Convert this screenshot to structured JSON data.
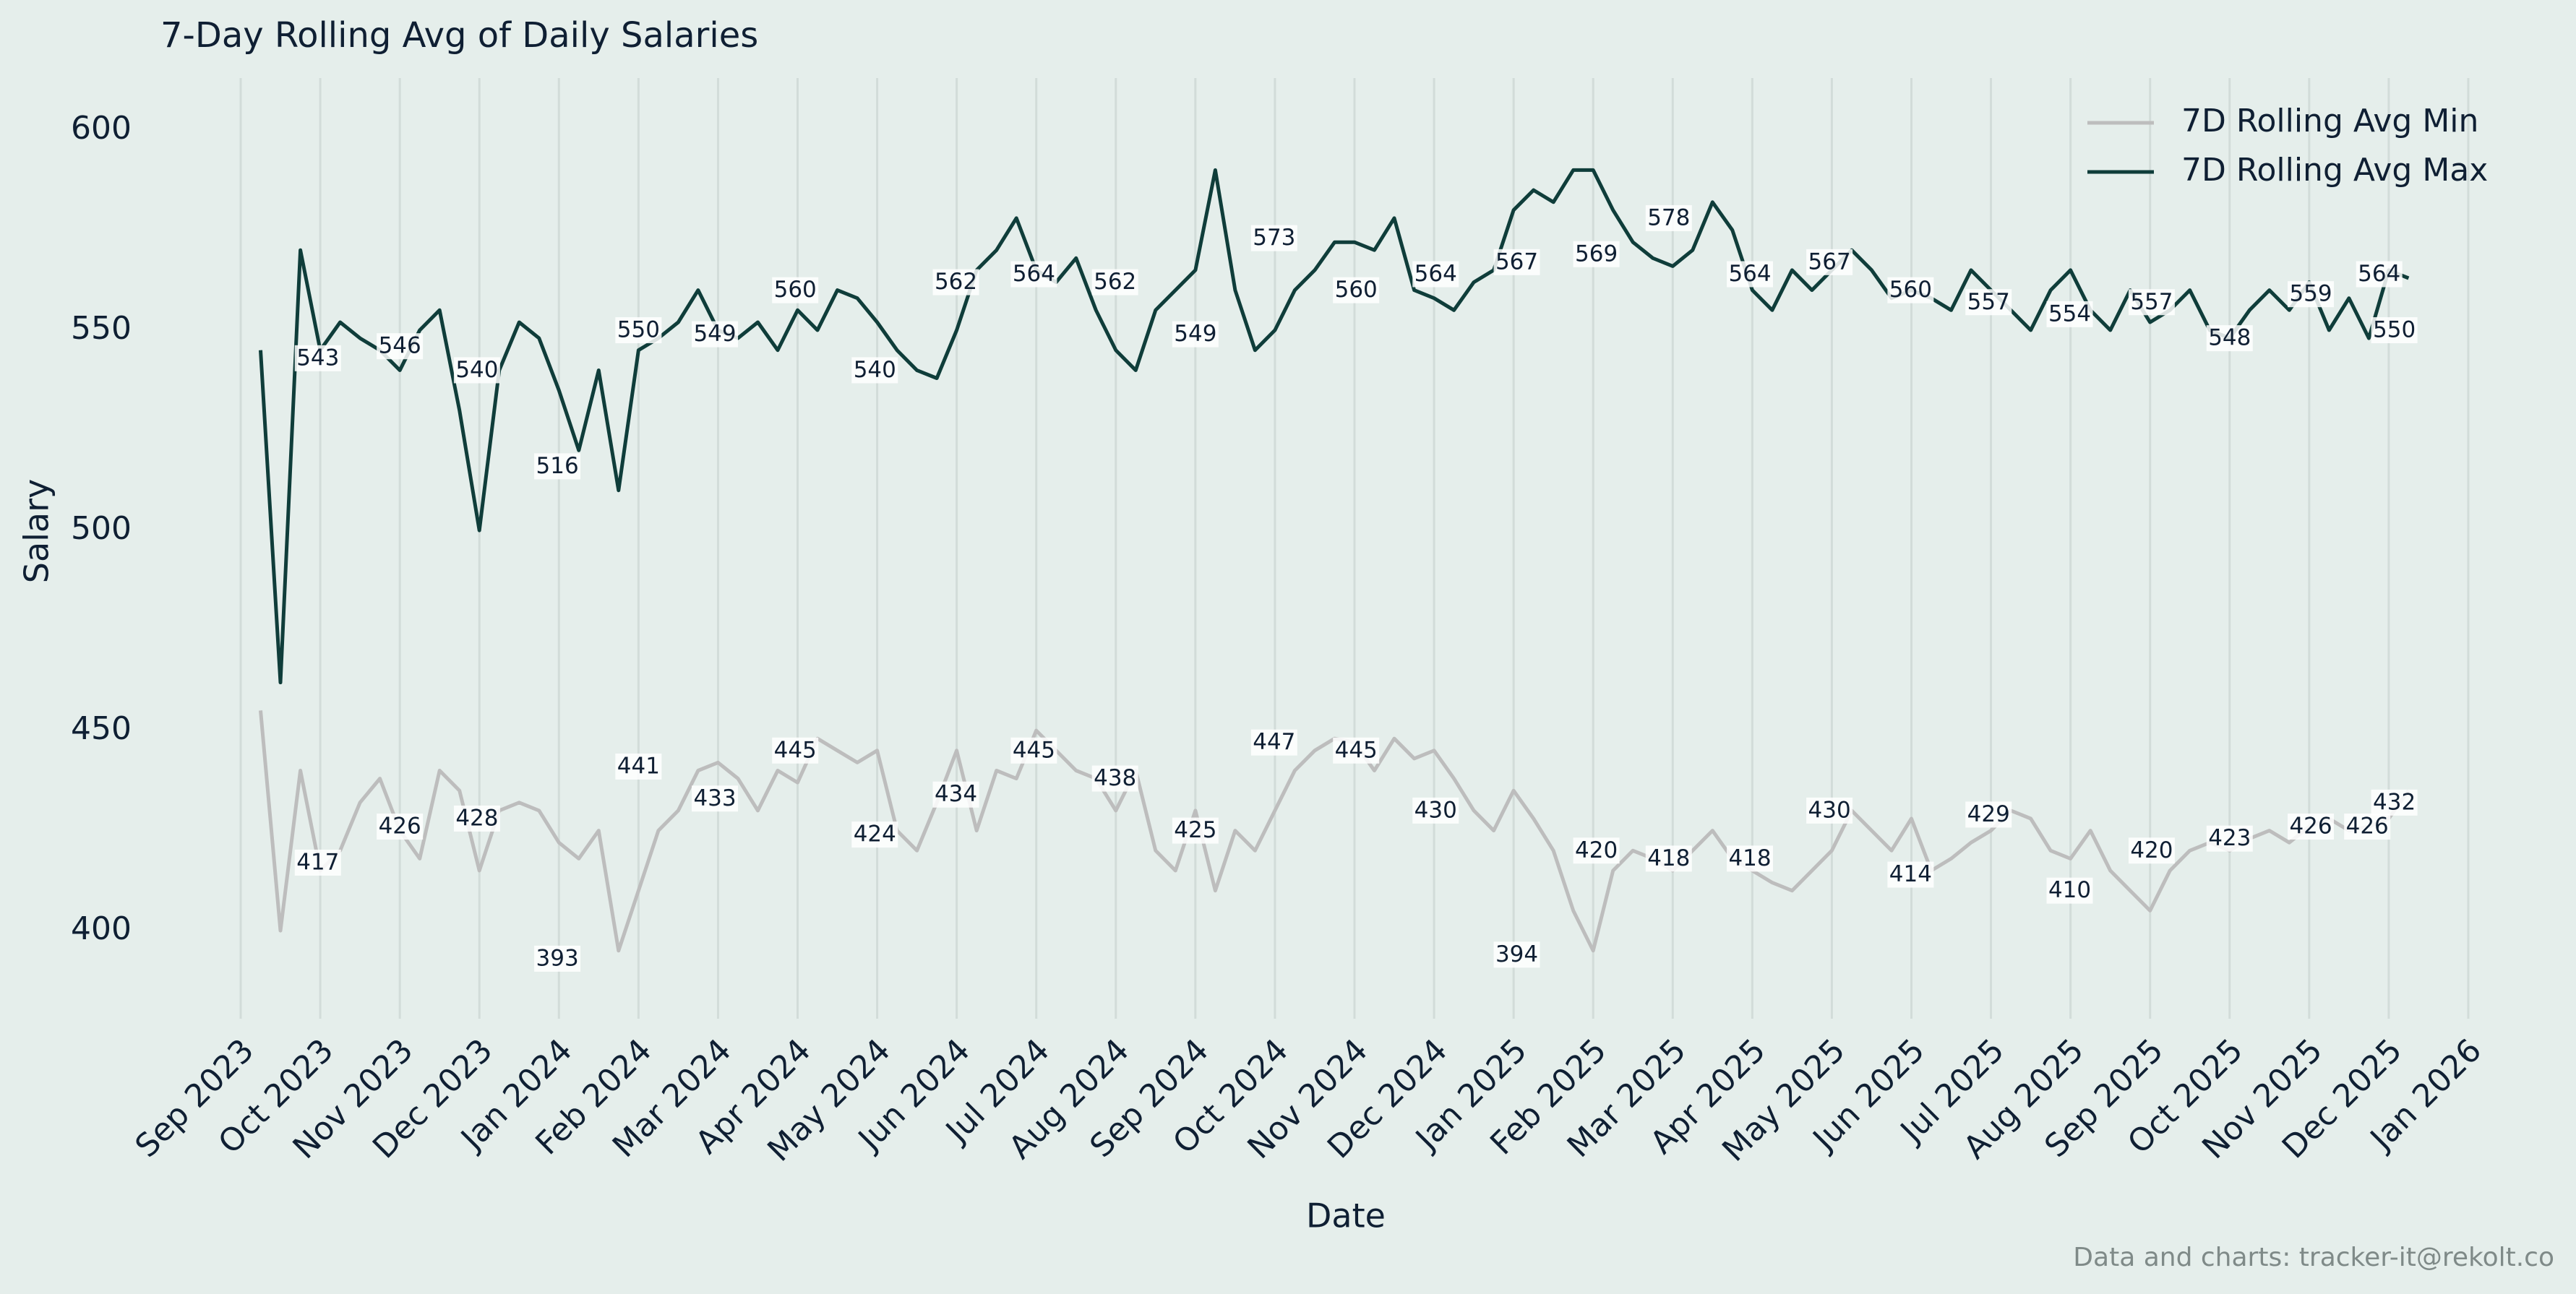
{
  "chart_data": {
    "type": "line",
    "title": "7-Day Rolling Avg of Daily Salaries",
    "xlabel": "Date",
    "ylabel": "Salary",
    "footer": "Data and charts: tracker-it@rekolt.co",
    "legend": "upper right",
    "grid": "x",
    "xlim": [
      -0.2,
      28.2
    ],
    "ylim": [
      378,
      613
    ],
    "xticks": [
      {
        "value": 0,
        "label": "Sep 2023"
      },
      {
        "value": 1,
        "label": "Oct 2023"
      },
      {
        "value": 2,
        "label": "Nov 2023"
      },
      {
        "value": 3,
        "label": "Dec 2023"
      },
      {
        "value": 4,
        "label": "Jan 2024"
      },
      {
        "value": 5,
        "label": "Feb 2024"
      },
      {
        "value": 6,
        "label": "Mar 2024"
      },
      {
        "value": 7,
        "label": "Apr 2024"
      },
      {
        "value": 8,
        "label": "May 2024"
      },
      {
        "value": 9,
        "label": "Jun 2024"
      },
      {
        "value": 10,
        "label": "Jul 2024"
      },
      {
        "value": 11,
        "label": "Aug 2024"
      },
      {
        "value": 12,
        "label": "Sep 2024"
      },
      {
        "value": 13,
        "label": "Oct 2024"
      },
      {
        "value": 14,
        "label": "Nov 2024"
      },
      {
        "value": 15,
        "label": "Dec 2024"
      },
      {
        "value": 16,
        "label": "Jan 2025"
      },
      {
        "value": 17,
        "label": "Feb 2025"
      },
      {
        "value": 18,
        "label": "Mar 2025"
      },
      {
        "value": 19,
        "label": "Apr 2025"
      },
      {
        "value": 20,
        "label": "May 2025"
      },
      {
        "value": 21,
        "label": "Jun 2025"
      },
      {
        "value": 22,
        "label": "Jul 2025"
      },
      {
        "value": 23,
        "label": "Aug 2025"
      },
      {
        "value": 24,
        "label": "Sep 2025"
      },
      {
        "value": 25,
        "label": "Oct 2025"
      },
      {
        "value": 26,
        "label": "Nov 2025"
      },
      {
        "value": 27,
        "label": "Dec 2025"
      },
      {
        "value": 28,
        "label": "Jan 2026"
      }
    ],
    "yticks": [
      400,
      450,
      500,
      550,
      600
    ],
    "x": [
      0.25,
      0.5,
      0.75,
      1,
      1.25,
      1.5,
      1.75,
      2,
      2.25,
      2.5,
      2.75,
      3,
      3.25,
      3.5,
      3.75,
      4,
      4.25,
      4.5,
      4.75,
      5,
      5.25,
      5.5,
      5.75,
      6,
      6.25,
      6.5,
      6.75,
      7,
      7.25,
      7.5,
      7.75,
      8,
      8.25,
      8.5,
      8.75,
      9,
      9.25,
      9.5,
      9.75,
      10,
      10.25,
      10.5,
      10.75,
      11,
      11.25,
      11.5,
      11.75,
      12,
      12.25,
      12.5,
      12.75,
      13,
      13.25,
      13.5,
      13.75,
      14,
      14.25,
      14.5,
      14.75,
      15,
      15.25,
      15.5,
      15.75,
      16,
      16.25,
      16.5,
      16.75,
      17,
      17.25,
      17.5,
      17.75,
      18,
      18.25,
      18.5,
      18.75,
      19,
      19.25,
      19.5,
      19.75,
      20,
      20.25,
      20.5,
      20.75,
      21,
      21.25,
      21.5,
      21.75,
      22,
      22.25,
      22.5,
      22.75,
      23,
      23.25,
      23.5,
      23.75,
      24,
      24.25,
      24.5,
      24.75,
      25,
      25.25,
      25.5,
      25.75,
      26,
      26.25,
      26.5,
      26.75,
      27,
      27.25
    ],
    "series": [
      {
        "name": "7D Rolling Avg Min",
        "color": "#bdbdbd",
        "values": [
          455,
          400,
          440,
          415,
          420,
          432,
          438,
          425,
          418,
          440,
          435,
          415,
          430,
          432,
          430,
          422,
          418,
          425,
          395,
          410,
          425,
          430,
          440,
          442,
          438,
          430,
          440,
          437,
          448,
          445,
          442,
          445,
          425,
          420,
          432,
          445,
          425,
          440,
          438,
          450,
          445,
          440,
          438,
          430,
          440,
          420,
          415,
          430,
          410,
          425,
          420,
          430,
          440,
          445,
          448,
          447,
          440,
          448,
          443,
          445,
          438,
          430,
          425,
          435,
          428,
          420,
          405,
          395,
          415,
          420,
          418,
          415,
          420,
          425,
          418,
          415,
          412,
          410,
          415,
          420,
          430,
          425,
          420,
          428,
          415,
          418,
          422,
          425,
          430,
          428,
          420,
          418,
          425,
          415,
          410,
          405,
          415,
          420,
          422,
          420,
          423,
          425,
          422,
          426,
          428,
          425,
          426,
          428,
          435
        ],
        "point_labels": {
          "x": [
            0.97,
            2,
            2.97,
            3.98,
            5,
            5.96,
            6.97,
            7.97,
            8.99,
            9.97,
            10.99,
            12,
            12.99,
            14.02,
            15.02,
            16.04,
            17.04,
            17.95,
            18.97,
            19.97,
            20.99,
            21.97,
            22.99,
            24.02,
            25,
            26.02,
            26.73,
            27.07
          ],
          "values": [
            417,
            426,
            428,
            393,
            441,
            433,
            445,
            424,
            434,
            445,
            438,
            425,
            447,
            445,
            430,
            394,
            420,
            418,
            418,
            430,
            414,
            429,
            410,
            420,
            423,
            426,
            426,
            432
          ]
        }
      },
      {
        "name": "7D Rolling Avg Max",
        "color": "#0f3d3a",
        "values": [
          545,
          462,
          570,
          545,
          552,
          548,
          545,
          540,
          550,
          555,
          530,
          500,
          540,
          552,
          548,
          535,
          520,
          540,
          510,
          545,
          548,
          552,
          560,
          550,
          548,
          552,
          545,
          555,
          550,
          560,
          558,
          552,
          545,
          540,
          538,
          550,
          565,
          570,
          578,
          565,
          562,
          568,
          555,
          545,
          540,
          555,
          560,
          565,
          590,
          560,
          545,
          550,
          560,
          565,
          572,
          572,
          570,
          578,
          560,
          558,
          555,
          562,
          565,
          580,
          585,
          582,
          590,
          590,
          580,
          572,
          568,
          566,
          570,
          582,
          575,
          560,
          555,
          565,
          560,
          565,
          570,
          565,
          558,
          560,
          558,
          555,
          565,
          560,
          555,
          550,
          560,
          565,
          555,
          550,
          560,
          552,
          555,
          560,
          550,
          548,
          555,
          560,
          555,
          562,
          550,
          558,
          548,
          565,
          563
        ],
        "point_labels": {
          "x": [
            0.97,
            2,
            2.97,
            3.98,
            5,
            5.96,
            6.97,
            7.97,
            8.99,
            9.97,
            10.99,
            12,
            12.99,
            14.02,
            15.02,
            16.04,
            17.04,
            17.95,
            18.97,
            19.97,
            20.99,
            21.97,
            22.99,
            24.02,
            25,
            26.02,
            26.88,
            27.07
          ],
          "values": [
            543,
            546,
            540,
            516,
            550,
            549,
            560,
            540,
            562,
            564,
            562,
            549,
            573,
            560,
            564,
            567,
            569,
            578,
            564,
            567,
            560,
            557,
            554,
            557,
            548,
            559,
            564,
            550
          ]
        }
      }
    ]
  }
}
